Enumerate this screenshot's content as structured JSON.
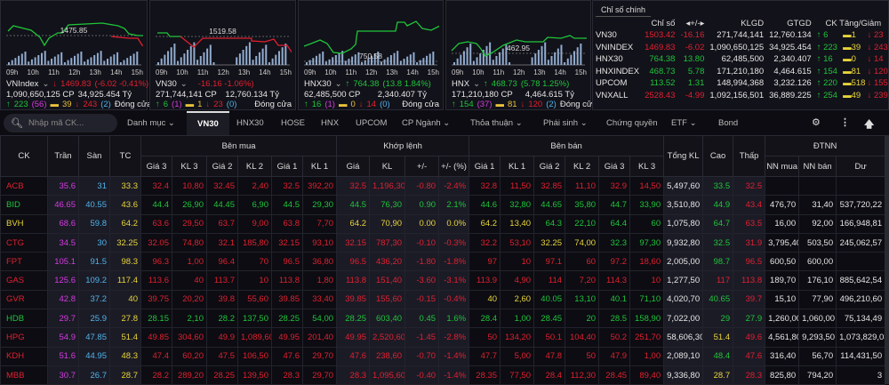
{
  "colors": {
    "r": "#e0202f",
    "g": "#1fc53a",
    "y": "#e8d43a",
    "p": "#d63ae0",
    "b": "#4fb3e8",
    "w": "#e6e6e6"
  },
  "times": [
    "09h",
    "10h",
    "11h",
    "12h",
    "13h",
    "14h",
    "15h"
  ],
  "index_panels": [
    {
      "name": "VNIndex",
      "value": "1469.83",
      "change": "(-6.02  -0.41%)",
      "dir": "down",
      "ref": "1475.85",
      "volume": "1,090,650,125 CP",
      "value_traded": "34,925.454 Tỷ",
      "up": "223",
      "ceil": "(56)",
      "flat": "39",
      "down": "243",
      "floor": "(2)",
      "status": "Đóng cửa"
    },
    {
      "name": "VN30",
      "value": "",
      "change": "-16.16  -1.06%)",
      "dir": "down",
      "ref": "1519.58",
      "volume": "271,744,141 CP",
      "value_traded": "12,760.134 Tỷ",
      "up": "6",
      "ceil": "(1)",
      "flat": "1",
      "down": "23",
      "floor": "(0)",
      "status": "Đóng cửa"
    },
    {
      "name": "HNX30",
      "value": "764.38",
      "change": "(13.8  1.84%)",
      "dir": "up",
      "ref": "750.58",
      "volume": "62,485,500 CP",
      "value_traded": "2,340.407 Tỷ",
      "up": "16",
      "ceil": "(1)",
      "flat": "0",
      "down": "14",
      "floor": "(0)",
      "status": "Đóng cửa"
    },
    {
      "name": "HNX",
      "value": "468.73",
      "change": "(5.78  1.25%)",
      "dir": "up",
      "ref": "462.95",
      "volume": "171,210,180 CP",
      "value_traded": "4,464.615 Tỷ",
      "up": "154",
      "ceil": "(37)",
      "flat": "81",
      "down": "120",
      "floor": "(2)",
      "status": "Đóng cửa"
    }
  ],
  "main_indices": {
    "title": "Chỉ số chính",
    "headers": [
      "",
      "Chỉ số",
      "◂+/-▸",
      "KLGD",
      "GTGD",
      "CK Tăng/Giảm"
    ],
    "rows": [
      {
        "name": "VN30",
        "value": "1503.42",
        "change": "-16.16",
        "klgd": "271,744,141",
        "gtgd": "12,760.134",
        "up": "6",
        "flat": "1",
        "down": "23",
        "color": "r"
      },
      {
        "name": "VNINDEX",
        "value": "1469.83",
        "change": "-6.02",
        "klgd": "1,090,650,125",
        "gtgd": "34,925.454",
        "up": "223",
        "flat": "39",
        "down": "243",
        "color": "r"
      },
      {
        "name": "HNX30",
        "value": "764.38",
        "change": "13.80",
        "klgd": "62,485,500",
        "gtgd": "2,340.407",
        "up": "16",
        "flat": "0",
        "down": "14",
        "color": "g"
      },
      {
        "name": "HNXINDEX",
        "value": "468.73",
        "change": "5.78",
        "klgd": "171,210,180",
        "gtgd": "4,464.615",
        "up": "154",
        "flat": "81",
        "down": "120",
        "color": "g"
      },
      {
        "name": "UPCOM",
        "value": "113.52",
        "change": "1.31",
        "klgd": "148,994,368",
        "gtgd": "3,232.126",
        "up": "220",
        "flat": "518",
        "down": "155",
        "color": "g"
      },
      {
        "name": "VNXALL",
        "value": "2528.43",
        "change": "-4.99",
        "klgd": "1,092,156,501",
        "gtgd": "36,889.225",
        "up": "254",
        "flat": "49",
        "down": "239",
        "color": "r"
      }
    ]
  },
  "toolbar": {
    "search_placeholder": "Nhập mã CK...",
    "tabs": [
      "Danh mục ⌄",
      "VN30",
      "HNX30",
      "HOSE",
      "HNX",
      "UPCOM",
      "CP Ngành ⌄",
      "Thỏa thuận ⌄",
      "Phái sinh ⌄",
      "Chứng quyền",
      "ETF ⌄",
      "Bond"
    ],
    "active_tab": "VN30"
  },
  "table": {
    "groups": {
      "ck": "CK",
      "tran": "Trần",
      "san": "Sàn",
      "tc": "TC",
      "buy": "Bên mua",
      "match": "Khớp lệnh",
      "sell": "Bên bán",
      "total": "Tổng KL",
      "high": "Cao",
      "low": "Thấp",
      "foreign": "ĐTNN"
    },
    "sub": [
      "Giá 3",
      "KL 3",
      "Giá 2",
      "KL 2",
      "Giá 1",
      "KL 1",
      "Giá",
      "KL",
      "+/-",
      "+/- (%)",
      "Giá 1",
      "KL 1",
      "Giá 2",
      "KL 2",
      "Giá 3",
      "KL 3",
      "NN mua",
      "NN bán",
      "Dư"
    ],
    "rows": [
      [
        [
          "ACB",
          "r"
        ],
        [
          "35.6",
          "p"
        ],
        [
          "31",
          "b"
        ],
        [
          "33.3",
          "y"
        ],
        [
          "32.4",
          "r"
        ],
        [
          "10,80",
          "r"
        ],
        [
          "32.45",
          "r"
        ],
        [
          "2,40",
          "r"
        ],
        [
          "32.5",
          "r"
        ],
        [
          "392,20",
          "r"
        ],
        [
          "32.5",
          "r"
        ],
        [
          "1,196,30",
          "r"
        ],
        [
          "-0.80",
          "r"
        ],
        [
          "-2.4%",
          "r"
        ],
        [
          "32.8",
          "r"
        ],
        [
          "11,50",
          "r"
        ],
        [
          "32.85",
          "r"
        ],
        [
          "11,10",
          "r"
        ],
        [
          "32.9",
          "r"
        ],
        [
          "14,50",
          "r"
        ],
        [
          "5,497,60",
          "w"
        ],
        [
          "33.5",
          "g"
        ],
        [
          "32.5",
          "r"
        ],
        [
          "",
          "w"
        ],
        [
          "",
          "w"
        ],
        [
          "",
          "w"
        ]
      ],
      [
        [
          "BID",
          "g"
        ],
        [
          "46.65",
          "p"
        ],
        [
          "40.55",
          "b"
        ],
        [
          "43.6",
          "y"
        ],
        [
          "44.4",
          "g"
        ],
        [
          "26,90",
          "g"
        ],
        [
          "44.45",
          "g"
        ],
        [
          "6,90",
          "g"
        ],
        [
          "44.5",
          "g"
        ],
        [
          "29,30",
          "g"
        ],
        [
          "44.5",
          "g"
        ],
        [
          "76,30",
          "g"
        ],
        [
          "0.90",
          "g"
        ],
        [
          "2.1%",
          "g"
        ],
        [
          "44.6",
          "g"
        ],
        [
          "32,80",
          "g"
        ],
        [
          "44.65",
          "g"
        ],
        [
          "35,80",
          "g"
        ],
        [
          "44.7",
          "g"
        ],
        [
          "33,90",
          "g"
        ],
        [
          "3,510,80",
          "w"
        ],
        [
          "44.9",
          "g"
        ],
        [
          "43.4",
          "r"
        ],
        [
          "476,70",
          "w"
        ],
        [
          "31,40",
          "w"
        ],
        [
          "537,720,22",
          "w"
        ]
      ],
      [
        [
          "BVH",
          "y"
        ],
        [
          "68.6",
          "p"
        ],
        [
          "59.8",
          "b"
        ],
        [
          "64.2",
          "y"
        ],
        [
          "63.6",
          "r"
        ],
        [
          "29,50",
          "r"
        ],
        [
          "63.7",
          "r"
        ],
        [
          "9,00",
          "r"
        ],
        [
          "63.8",
          "r"
        ],
        [
          "7,70",
          "r"
        ],
        [
          "64.2",
          "y"
        ],
        [
          "70,90",
          "y"
        ],
        [
          "0.00",
          "y"
        ],
        [
          "0.0%",
          "y"
        ],
        [
          "64.2",
          "y"
        ],
        [
          "13,40",
          "y"
        ],
        [
          "64.3",
          "g"
        ],
        [
          "22,10",
          "g"
        ],
        [
          "64.4",
          "g"
        ],
        [
          "60",
          "g"
        ],
        [
          "1,075,80",
          "w"
        ],
        [
          "64.7",
          "g"
        ],
        [
          "63.5",
          "r"
        ],
        [
          "16,00",
          "w"
        ],
        [
          "92,00",
          "w"
        ],
        [
          "166,948,81",
          "w"
        ]
      ],
      [
        [
          "CTG",
          "r"
        ],
        [
          "34.5",
          "p"
        ],
        [
          "30",
          "b"
        ],
        [
          "32.25",
          "y"
        ],
        [
          "32.05",
          "r"
        ],
        [
          "74,80",
          "r"
        ],
        [
          "32.1",
          "r"
        ],
        [
          "185,80",
          "r"
        ],
        [
          "32.15",
          "r"
        ],
        [
          "93,10",
          "r"
        ],
        [
          "32.15",
          "r"
        ],
        [
          "787,30",
          "r"
        ],
        [
          "-0.10",
          "r"
        ],
        [
          "-0.3%",
          "r"
        ],
        [
          "32.2",
          "r"
        ],
        [
          "53,10",
          "r"
        ],
        [
          "32.25",
          "y"
        ],
        [
          "74,00",
          "y"
        ],
        [
          "32.3",
          "g"
        ],
        [
          "97,30",
          "g"
        ],
        [
          "9,932,80",
          "w"
        ],
        [
          "32.5",
          "g"
        ],
        [
          "31.9",
          "r"
        ],
        [
          "3,795,40",
          "w"
        ],
        [
          "503,50",
          "w"
        ],
        [
          "245,062,57",
          "w"
        ]
      ],
      [
        [
          "FPT",
          "r"
        ],
        [
          "105.1",
          "p"
        ],
        [
          "91.5",
          "b"
        ],
        [
          "98.3",
          "y"
        ],
        [
          "96.3",
          "r"
        ],
        [
          "1,00",
          "r"
        ],
        [
          "96.4",
          "r"
        ],
        [
          "70",
          "r"
        ],
        [
          "96.5",
          "r"
        ],
        [
          "36,80",
          "r"
        ],
        [
          "96.5",
          "r"
        ],
        [
          "436,20",
          "r"
        ],
        [
          "-1.80",
          "r"
        ],
        [
          "-1.8%",
          "r"
        ],
        [
          "97",
          "r"
        ],
        [
          "10",
          "r"
        ],
        [
          "97.1",
          "r"
        ],
        [
          "60",
          "r"
        ],
        [
          "97.2",
          "r"
        ],
        [
          "18,60",
          "r"
        ],
        [
          "2,005,00",
          "w"
        ],
        [
          "98.7",
          "g"
        ],
        [
          "96.5",
          "r"
        ],
        [
          "600,50",
          "w"
        ],
        [
          "600,00",
          "w"
        ],
        [
          "",
          "w"
        ]
      ],
      [
        [
          "GAS",
          "r"
        ],
        [
          "125.6",
          "p"
        ],
        [
          "109.2",
          "b"
        ],
        [
          "117.4",
          "y"
        ],
        [
          "113.6",
          "r"
        ],
        [
          "40",
          "r"
        ],
        [
          "113.7",
          "r"
        ],
        [
          "10",
          "r"
        ],
        [
          "113.8",
          "r"
        ],
        [
          "1,80",
          "r"
        ],
        [
          "113.8",
          "r"
        ],
        [
          "151,40",
          "r"
        ],
        [
          "-3.60",
          "r"
        ],
        [
          "-3.1%",
          "r"
        ],
        [
          "113.9",
          "r"
        ],
        [
          "4,90",
          "r"
        ],
        [
          "114",
          "r"
        ],
        [
          "7,20",
          "r"
        ],
        [
          "114.3",
          "r"
        ],
        [
          "10",
          "r"
        ],
        [
          "1,277,50",
          "w"
        ],
        [
          "117",
          "r"
        ],
        [
          "113.8",
          "r"
        ],
        [
          "189,70",
          "w"
        ],
        [
          "176,10",
          "w"
        ],
        [
          "885,642,54",
          "w"
        ]
      ],
      [
        [
          "GVR",
          "r"
        ],
        [
          "42.8",
          "p"
        ],
        [
          "37.2",
          "b"
        ],
        [
          "40",
          "y"
        ],
        [
          "39.75",
          "r"
        ],
        [
          "20,20",
          "r"
        ],
        [
          "39.8",
          "r"
        ],
        [
          "55,60",
          "r"
        ],
        [
          "39.85",
          "r"
        ],
        [
          "33,40",
          "r"
        ],
        [
          "39.85",
          "r"
        ],
        [
          "155,60",
          "r"
        ],
        [
          "-0.15",
          "r"
        ],
        [
          "-0.4%",
          "r"
        ],
        [
          "40",
          "y"
        ],
        [
          "2,60",
          "y"
        ],
        [
          "40.05",
          "g"
        ],
        [
          "13,10",
          "g"
        ],
        [
          "40.1",
          "g"
        ],
        [
          "71,10",
          "g"
        ],
        [
          "4,020,70",
          "w"
        ],
        [
          "40.65",
          "g"
        ],
        [
          "39.7",
          "r"
        ],
        [
          "15,10",
          "w"
        ],
        [
          "77,90",
          "w"
        ],
        [
          "496,210,60",
          "w"
        ]
      ],
      [
        [
          "HDB",
          "g"
        ],
        [
          "29.7",
          "p"
        ],
        [
          "25.9",
          "b"
        ],
        [
          "27.8",
          "y"
        ],
        [
          "28.15",
          "g"
        ],
        [
          "2,10",
          "g"
        ],
        [
          "28.2",
          "g"
        ],
        [
          "137,50",
          "g"
        ],
        [
          "28.25",
          "g"
        ],
        [
          "54,00",
          "g"
        ],
        [
          "28.25",
          "g"
        ],
        [
          "603,40",
          "g"
        ],
        [
          "0.45",
          "g"
        ],
        [
          "1.6%",
          "g"
        ],
        [
          "28.4",
          "g"
        ],
        [
          "1,00",
          "g"
        ],
        [
          "28.45",
          "g"
        ],
        [
          "20",
          "g"
        ],
        [
          "28.5",
          "g"
        ],
        [
          "158,90",
          "g"
        ],
        [
          "7,022,00",
          "w"
        ],
        [
          "29",
          "g"
        ],
        [
          "27.9",
          "g"
        ],
        [
          "1,260,00",
          "w"
        ],
        [
          "1,060,00",
          "w"
        ],
        [
          "75,134,49",
          "w"
        ]
      ],
      [
        [
          "HPG",
          "r"
        ],
        [
          "54.9",
          "p"
        ],
        [
          "47.85",
          "b"
        ],
        [
          "51.4",
          "y"
        ],
        [
          "49.85",
          "r"
        ],
        [
          "304,60",
          "r"
        ],
        [
          "49.9",
          "r"
        ],
        [
          "1,089,60",
          "r"
        ],
        [
          "49.95",
          "r"
        ],
        [
          "201,40",
          "r"
        ],
        [
          "49.95",
          "r"
        ],
        [
          "2,520,60",
          "r"
        ],
        [
          "-1.45",
          "r"
        ],
        [
          "-2.8%",
          "r"
        ],
        [
          "50",
          "r"
        ],
        [
          "134,20",
          "r"
        ],
        [
          "50.1",
          "r"
        ],
        [
          "104,40",
          "r"
        ],
        [
          "50.2",
          "r"
        ],
        [
          "251,70",
          "r"
        ],
        [
          "58,606,30",
          "w"
        ],
        [
          "51.4",
          "y"
        ],
        [
          "49.6",
          "r"
        ],
        [
          "4,561,80",
          "w"
        ],
        [
          "9,293,50",
          "w"
        ],
        [
          "1,073,829,03",
          "w"
        ]
      ],
      [
        [
          "KDH",
          "r"
        ],
        [
          "51.6",
          "p"
        ],
        [
          "44.95",
          "b"
        ],
        [
          "48.3",
          "y"
        ],
        [
          "47.4",
          "r"
        ],
        [
          "60,20",
          "r"
        ],
        [
          "47.5",
          "r"
        ],
        [
          "106,50",
          "r"
        ],
        [
          "47.6",
          "r"
        ],
        [
          "29,70",
          "r"
        ],
        [
          "47.6",
          "r"
        ],
        [
          "238,60",
          "r"
        ],
        [
          "-0.70",
          "r"
        ],
        [
          "-1.4%",
          "r"
        ],
        [
          "47.7",
          "r"
        ],
        [
          "5,00",
          "r"
        ],
        [
          "47.8",
          "r"
        ],
        [
          "50",
          "r"
        ],
        [
          "47.9",
          "r"
        ],
        [
          "1,00",
          "r"
        ],
        [
          "2,089,10",
          "w"
        ],
        [
          "48.4",
          "g"
        ],
        [
          "47.6",
          "r"
        ],
        [
          "316,40",
          "w"
        ],
        [
          "56,70",
          "w"
        ],
        [
          "114,431,50",
          "w"
        ]
      ],
      [
        [
          "MBB",
          "r"
        ],
        [
          "30.7",
          "p"
        ],
        [
          "26.7",
          "b"
        ],
        [
          "28.7",
          "y"
        ],
        [
          "28.2",
          "r"
        ],
        [
          "289,20",
          "r"
        ],
        [
          "28.25",
          "r"
        ],
        [
          "139,50",
          "r"
        ],
        [
          "28.3",
          "r"
        ],
        [
          "29,70",
          "r"
        ],
        [
          "28.3",
          "r"
        ],
        [
          "1,095,60",
          "r"
        ],
        [
          "-0.40",
          "r"
        ],
        [
          "-1.4%",
          "r"
        ],
        [
          "28.35",
          "r"
        ],
        [
          "77,50",
          "r"
        ],
        [
          "28.4",
          "r"
        ],
        [
          "112,30",
          "r"
        ],
        [
          "28.45",
          "r"
        ],
        [
          "89,40",
          "r"
        ],
        [
          "9,336,80",
          "w"
        ],
        [
          "28.7",
          "y"
        ],
        [
          "28.3",
          "r"
        ],
        [
          "825,80",
          "w"
        ],
        [
          "794,20",
          "w"
        ],
        [
          "3",
          "w"
        ]
      ]
    ]
  }
}
